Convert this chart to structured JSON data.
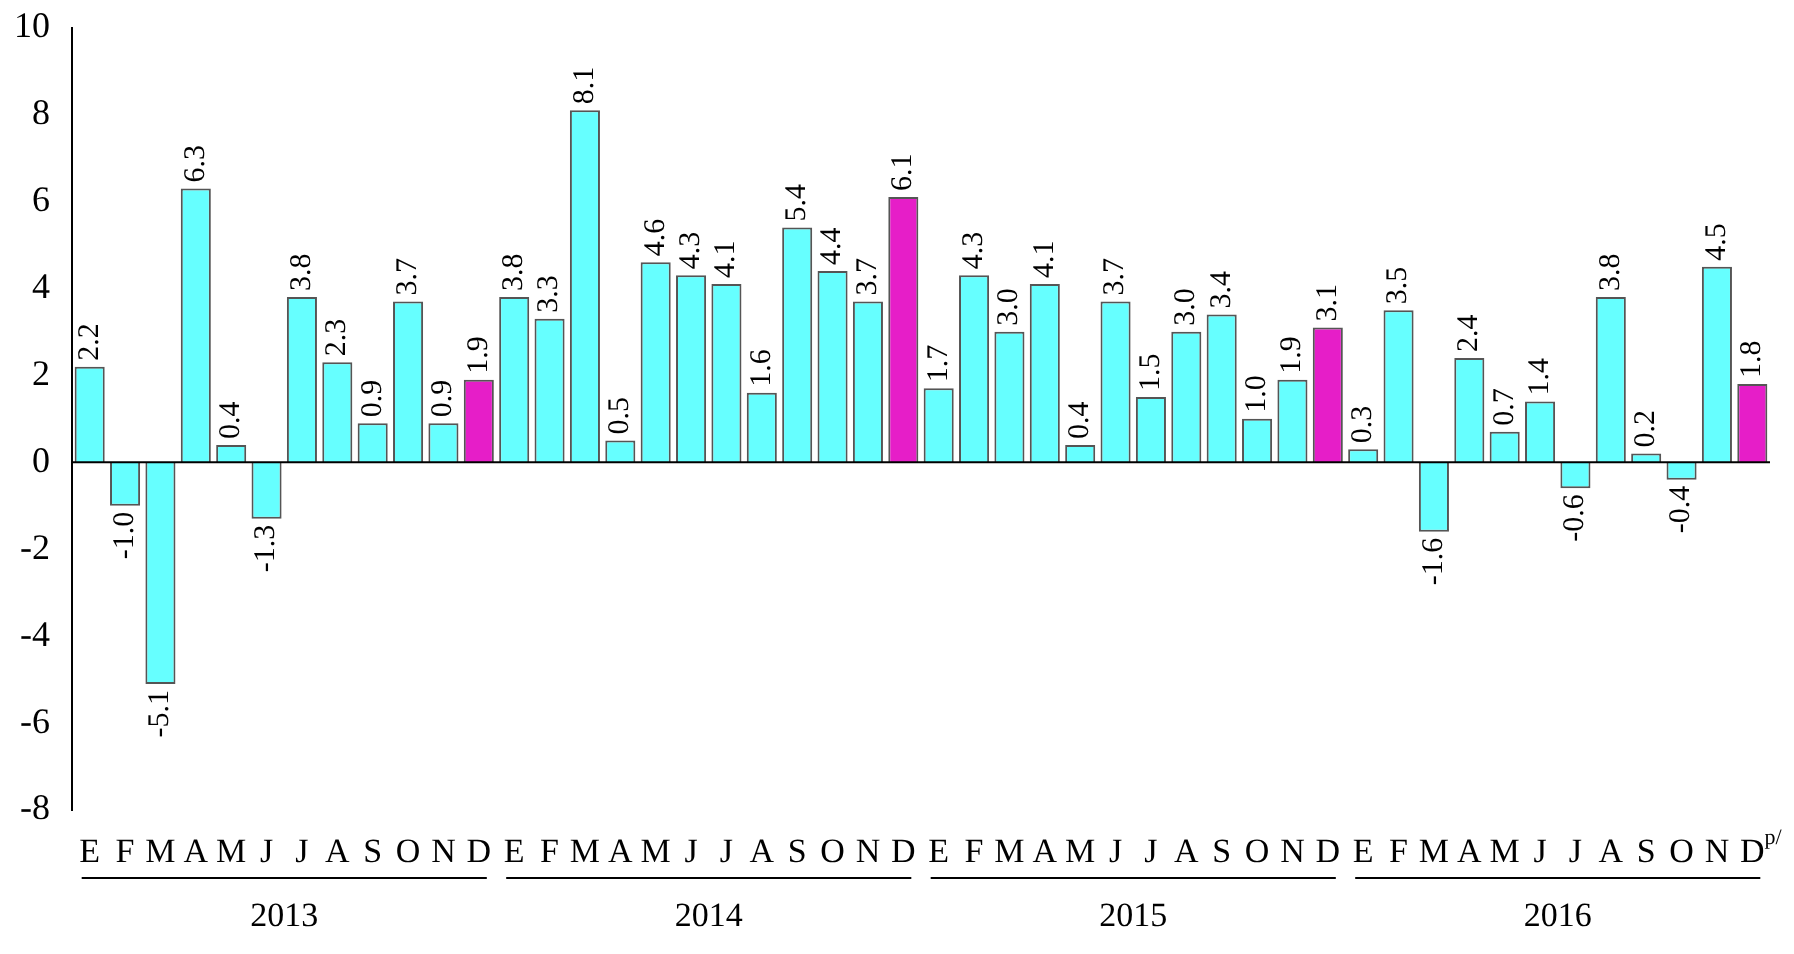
{
  "chart_data": {
    "type": "bar",
    "categories": [
      "E",
      "F",
      "M",
      "A",
      "M",
      "J",
      "J",
      "A",
      "S",
      "O",
      "N",
      "D",
      "E",
      "F",
      "M",
      "A",
      "M",
      "J",
      "J",
      "A",
      "S",
      "O",
      "N",
      "D",
      "E",
      "F",
      "M",
      "A",
      "M",
      "J",
      "J",
      "A",
      "S",
      "O",
      "N",
      "D",
      "E",
      "F",
      "M",
      "A",
      "M",
      "J",
      "J",
      "A",
      "S",
      "O",
      "N",
      "D$^{p/}$"
    ],
    "values": [
      2.2,
      -1.0,
      -5.1,
      6.3,
      0.4,
      -1.3,
      3.8,
      2.3,
      0.9,
      3.7,
      0.9,
      1.9,
      3.8,
      3.3,
      8.1,
      0.5,
      4.6,
      4.3,
      4.1,
      1.6,
      5.4,
      4.4,
      3.7,
      6.1,
      1.7,
      4.3,
      3.0,
      4.1,
      0.4,
      3.7,
      1.5,
      3.0,
      3.4,
      1.0,
      1.9,
      3.1,
      0.3,
      3.5,
      -1.6,
      2.4,
      0.7,
      1.4,
      -0.6,
      3.8,
      0.2,
      -0.4,
      4.5,
      1.8
    ],
    "colors": [
      "#66ffff",
      "#66ffff",
      "#66ffff",
      "#66ffff",
      "#66ffff",
      "#66ffff",
      "#66ffff",
      "#66ffff",
      "#66ffff",
      "#66ffff",
      "#66ffff",
      "#e61ec8",
      "#66ffff",
      "#66ffff",
      "#66ffff",
      "#66ffff",
      "#66ffff",
      "#66ffff",
      "#66ffff",
      "#66ffff",
      "#66ffff",
      "#66ffff",
      "#66ffff",
      "#e61ec8",
      "#66ffff",
      "#66ffff",
      "#66ffff",
      "#66ffff",
      "#66ffff",
      "#66ffff",
      "#66ffff",
      "#66ffff",
      "#66ffff",
      "#66ffff",
      "#66ffff",
      "#e61ec8",
      "#66ffff",
      "#66ffff",
      "#66ffff",
      "#66ffff",
      "#66ffff",
      "#66ffff",
      "#66ffff",
      "#66ffff",
      "#66ffff",
      "#66ffff",
      "#66ffff",
      "#e61ec8"
    ],
    "ylim": [
      -8,
      10
    ],
    "yticks": [
      -8,
      -6,
      -4,
      -2,
      0,
      2,
      4,
      6,
      8,
      10
    ],
    "value_labels": [
      "2.2",
      "-1.0",
      "-5.1",
      "6.3",
      "0.4",
      "-1.3",
      "3.8",
      "2.3",
      "0.9",
      "3.7",
      "0.9",
      "1.9",
      "3.8",
      "3.3",
      "8.1",
      "0.5",
      "4.6",
      "4.3",
      "4.1",
      "1.6",
      "5.4",
      "4.4",
      "3.7",
      "6.1",
      "1.7",
      "4.3",
      "3.0",
      "4.1",
      "0.4",
      "3.7",
      "1.5",
      "3.0",
      "3.4",
      "1.0",
      "1.9",
      "3.1",
      "0.3",
      "3.5",
      "-1.6",
      "2.4",
      "0.7",
      "1.4",
      "-0.6",
      "3.8",
      "0.2",
      "-0.4",
      "4.5",
      "1.8"
    ],
    "annotations": [
      "2013",
      "2014",
      "2015",
      "2016"
    ]
  }
}
